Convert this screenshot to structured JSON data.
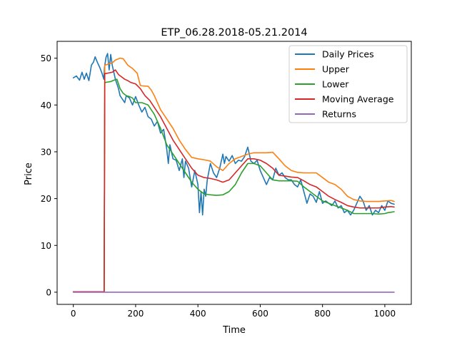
{
  "chart_data": {
    "type": "line",
    "title": "ETP_06.28.2018-05.21.2014",
    "xlabel": "Time",
    "ylabel": "Price",
    "xlim": [
      -52,
      1085
    ],
    "ylim": [
      -2.6,
      53.6
    ],
    "xticks": [
      0,
      200,
      400,
      600,
      800,
      1000
    ],
    "yticks": [
      0,
      10,
      20,
      30,
      40,
      50
    ],
    "xtick_labels": [
      "0",
      "200",
      "400",
      "600",
      "800",
      "1000"
    ],
    "ytick_labels": [
      "0",
      "10",
      "20",
      "30",
      "40",
      "50"
    ],
    "grid": false,
    "legend_position": "top-right",
    "series": [
      {
        "name": "Daily Prices",
        "color": "#1f77b4",
        "x": [
          0,
          10,
          20,
          28,
          35,
          42,
          50,
          58,
          65,
          70,
          78,
          85,
          92,
          98,
          100,
          105,
          110,
          115,
          120,
          125,
          130,
          135,
          140,
          145,
          150,
          160,
          165,
          170,
          180,
          190,
          200,
          210,
          220,
          230,
          240,
          250,
          260,
          270,
          280,
          290,
          300,
          305,
          310,
          320,
          330,
          340,
          350,
          355,
          360,
          370,
          380,
          390,
          400,
          405,
          410,
          415,
          420,
          425,
          430,
          440,
          450,
          460,
          470,
          480,
          485,
          490,
          500,
          510,
          520,
          530,
          540,
          550,
          560,
          565,
          570,
          580,
          590,
          600,
          610,
          620,
          630,
          640,
          650,
          660,
          670,
          680,
          690,
          700,
          710,
          720,
          730,
          740,
          750,
          760,
          770,
          780,
          790,
          800,
          810,
          820,
          830,
          840,
          850,
          860,
          870,
          880,
          890,
          900,
          910,
          920,
          930,
          940,
          950,
          960,
          970,
          980,
          990,
          1000,
          1010,
          1020,
          1030
        ],
        "y": [
          45.8,
          46.2,
          45.3,
          47.0,
          45.5,
          46.8,
          45.2,
          48.5,
          49.2,
          50.3,
          49.0,
          48.0,
          46.8,
          45.5,
          48.0,
          50.2,
          51.0,
          47.5,
          50.8,
          48.5,
          47.0,
          45.5,
          44.5,
          43.5,
          42.0,
          41.0,
          40.5,
          42.0,
          41.5,
          40.0,
          41.8,
          40.0,
          38.5,
          39.5,
          37.5,
          37.0,
          35.5,
          36.5,
          34.0,
          34.8,
          30.5,
          27.5,
          31.5,
          28.5,
          28.2,
          26.0,
          28.5,
          24.5,
          28.0,
          26.5,
          22.5,
          26.0,
          23.0,
          17.0,
          21.5,
          16.5,
          22.0,
          20.5,
          24.0,
          27.5,
          25.5,
          24.5,
          26.5,
          29.5,
          27.5,
          29.0,
          28.0,
          29.2,
          27.5,
          28.2,
          28.0,
          29.0,
          31.0,
          29.5,
          28.0,
          27.5,
          28.2,
          26.0,
          24.5,
          23.0,
          24.5,
          24.0,
          26.5,
          25.0,
          25.5,
          24.5,
          24.0,
          24.0,
          23.0,
          22.5,
          24.0,
          21.5,
          19.0,
          21.0,
          20.5,
          19.2,
          21.5,
          19.0,
          19.5,
          19.0,
          18.5,
          19.5,
          18.0,
          18.5,
          17.0,
          17.5,
          16.5,
          17.5,
          19.0,
          20.5,
          19.5,
          17.5,
          18.5,
          16.5,
          17.5,
          17.0,
          18.5,
          17.5,
          19.5,
          19.0,
          18.8
        ]
      },
      {
        "name": "Upper",
        "color": "#ff7f0e",
        "x": [
          0,
          97,
          99,
          101,
          105,
          115,
          125,
          135,
          150,
          160,
          175,
          190,
          205,
          215,
          220,
          240,
          250,
          260,
          280,
          300,
          320,
          340,
          360,
          380,
          400,
          420,
          440,
          460,
          480,
          500,
          520,
          540,
          560,
          580,
          600,
          620,
          640,
          660,
          680,
          700,
          720,
          740,
          760,
          780,
          800,
          820,
          840,
          860,
          880,
          900,
          920,
          940,
          960,
          980,
          1000,
          1020,
          1030
        ],
        "y": [
          0.1,
          0.1,
          0.1,
          48.5,
          48.6,
          48.8,
          49.0,
          49.6,
          50.0,
          49.9,
          48.5,
          47.8,
          46.8,
          44.2,
          44.1,
          44.0,
          43.2,
          42.0,
          39.0,
          37.0,
          35.0,
          32.5,
          30.5,
          28.8,
          28.5,
          28.3,
          28.0,
          26.8,
          26.0,
          27.5,
          28.5,
          29.0,
          29.5,
          29.8,
          29.8,
          29.8,
          29.9,
          28.5,
          27.0,
          26.0,
          25.6,
          25.5,
          25.5,
          25.5,
          24.5,
          23.5,
          23.0,
          22.0,
          20.5,
          19.8,
          19.5,
          19.4,
          19.4,
          19.4,
          19.5,
          19.6,
          19.4
        ]
      },
      {
        "name": "Lower",
        "color": "#2ca02c",
        "x": [
          0,
          97,
          99,
          101,
          110,
          120,
          130,
          140,
          150,
          160,
          170,
          180,
          190,
          200,
          220,
          240,
          260,
          280,
          300,
          320,
          340,
          360,
          380,
          400,
          420,
          440,
          460,
          480,
          500,
          520,
          540,
          560,
          580,
          600,
          620,
          640,
          660,
          680,
          700,
          720,
          740,
          760,
          780,
          800,
          820,
          840,
          860,
          880,
          900,
          920,
          940,
          960,
          980,
          1000,
          1010,
          1020,
          1030
        ],
        "y": [
          0.1,
          0.1,
          0.1,
          44.8,
          44.9,
          45.0,
          45.3,
          45.5,
          43.5,
          42.5,
          42.0,
          41.8,
          41.5,
          40.5,
          40.5,
          40.0,
          38.0,
          35.0,
          31.5,
          29.5,
          27.5,
          25.5,
          23.5,
          22.0,
          21.0,
          20.8,
          20.7,
          20.8,
          21.5,
          23.0,
          25.5,
          27.5,
          27.5,
          27.0,
          25.5,
          24.0,
          23.8,
          23.8,
          23.8,
          23.7,
          22.5,
          21.5,
          20.5,
          19.5,
          19.0,
          18.5,
          18.0,
          17.5,
          16.8,
          16.8,
          16.8,
          16.8,
          16.7,
          16.8,
          17.0,
          17.1,
          17.2
        ]
      },
      {
        "name": "Moving Average",
        "color": "#d62728",
        "x": [
          0,
          97,
          99,
          101,
          110,
          125,
          135,
          145,
          155,
          165,
          175,
          185,
          200,
          215,
          230,
          245,
          260,
          280,
          300,
          320,
          340,
          360,
          380,
          400,
          420,
          440,
          460,
          480,
          500,
          520,
          540,
          560,
          580,
          600,
          620,
          640,
          660,
          680,
          700,
          720,
          740,
          760,
          780,
          800,
          820,
          840,
          860,
          880,
          900,
          920,
          940,
          960,
          980,
          1000,
          1020,
          1030
        ],
        "y": [
          0.1,
          0.1,
          0.1,
          46.7,
          46.8,
          47.0,
          47.5,
          46.5,
          46.0,
          45.5,
          45.2,
          44.8,
          44.5,
          43.5,
          42.0,
          41.0,
          39.5,
          37.5,
          35.0,
          32.5,
          30.5,
          28.5,
          26.5,
          25.0,
          24.5,
          24.3,
          24.0,
          23.5,
          24.0,
          25.5,
          27.0,
          28.5,
          28.5,
          28.2,
          27.5,
          26.5,
          25.0,
          24.8,
          24.6,
          24.5,
          23.8,
          23.0,
          22.5,
          21.5,
          20.5,
          19.8,
          19.2,
          18.5,
          18.2,
          18.0,
          18.0,
          18.0,
          18.0,
          18.2,
          18.3,
          18.2
        ]
      },
      {
        "name": "Returns",
        "color": "#9467bd",
        "x": [
          0,
          100,
          200,
          300,
          400,
          500,
          600,
          700,
          800,
          900,
          1000,
          1030
        ],
        "y": [
          0.0,
          0.0,
          0.0,
          0.0,
          0.0,
          0.0,
          0.0,
          0.0,
          0.0,
          0.0,
          0.0,
          0.0
        ]
      }
    ]
  }
}
